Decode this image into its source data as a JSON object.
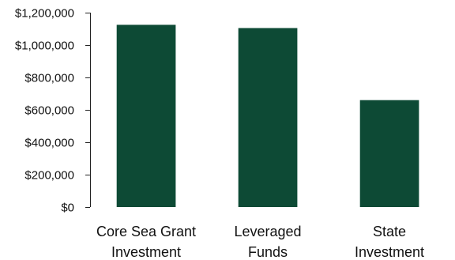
{
  "chart_data": {
    "type": "bar",
    "categories": [
      [
        "Core Sea Grant",
        "Investment"
      ],
      [
        "Leveraged",
        "Funds"
      ],
      [
        "State",
        "Investment"
      ]
    ],
    "values": [
      1125000,
      1105000,
      660000
    ],
    "ylim": [
      0,
      1200000
    ],
    "yticks": [
      0,
      200000,
      400000,
      600000,
      800000,
      1000000,
      1200000
    ],
    "ytick_labels": [
      "$0",
      "$200,000",
      "$400,000",
      "$600,000",
      "$800,000",
      "$1,000,000",
      "$1,200,000"
    ],
    "title": "",
    "xlabel": "",
    "ylabel": "",
    "grid": false,
    "bar_color": "#0d4a35"
  }
}
